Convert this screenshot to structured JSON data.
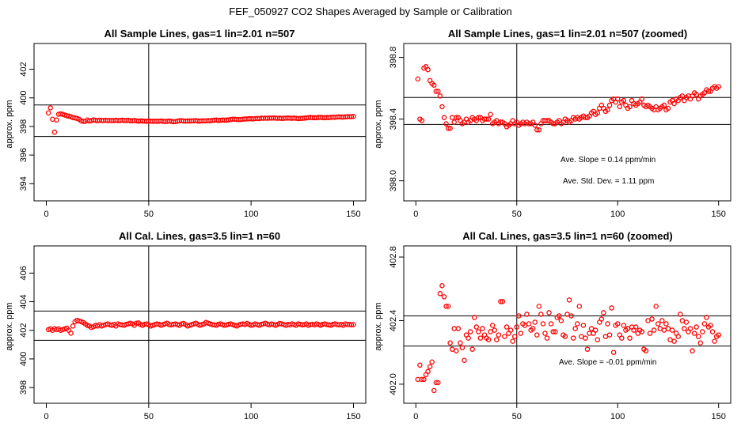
{
  "figure_title": "FEF_050927  CO2 Shapes Averaged by Sample or Calibration",
  "chart_data": [
    {
      "type": "scatter",
      "title": "All Sample Lines, gas=1 lin=2.01 n=507",
      "xlabel": "",
      "ylabel": "approx. ppm",
      "xlim": [
        -6,
        156
      ],
      "ylim": [
        392.8,
        403.8
      ],
      "xticks": [
        0,
        50,
        100,
        150
      ],
      "yticks": [
        394,
        396,
        398,
        400,
        402
      ],
      "hlines": [
        399.5,
        397.3
      ],
      "vline": 50,
      "marker_color": "#ff0000",
      "x": [
        1,
        2,
        3,
        4,
        5,
        6,
        7,
        8,
        9,
        10,
        11,
        12,
        13,
        14,
        15,
        16,
        17,
        18,
        19,
        20,
        21,
        22,
        23,
        24,
        25,
        26,
        27,
        28,
        29,
        30,
        31,
        32,
        33,
        34,
        35,
        36,
        37,
        38,
        39,
        40,
        41,
        42,
        43,
        44,
        45,
        46,
        47,
        48,
        49,
        50,
        51,
        52,
        53,
        54,
        55,
        56,
        57,
        58,
        59,
        60,
        61,
        62,
        63,
        64,
        65,
        66,
        67,
        68,
        69,
        70,
        71,
        72,
        73,
        74,
        75,
        76,
        77,
        78,
        79,
        80,
        81,
        82,
        83,
        84,
        85,
        86,
        87,
        88,
        89,
        90,
        91,
        92,
        93,
        94,
        95,
        96,
        97,
        98,
        99,
        100,
        101,
        102,
        103,
        104,
        105,
        106,
        107,
        108,
        109,
        110,
        111,
        112,
        113,
        114,
        115,
        116,
        117,
        118,
        119,
        120,
        121,
        122,
        123,
        124,
        125,
        126,
        127,
        128,
        129,
        130,
        131,
        132,
        133,
        134,
        135,
        136,
        137,
        138,
        139,
        140,
        141,
        142,
        143,
        144,
        145,
        146,
        147,
        148,
        149,
        150
      ],
      "y": [
        398.95,
        399.3,
        398.5,
        397.6,
        398.45,
        398.85,
        398.88,
        398.85,
        398.8,
        398.75,
        398.72,
        398.68,
        398.62,
        398.6,
        398.56,
        398.5,
        398.4,
        398.36,
        398.35,
        398.45,
        398.38,
        398.41,
        398.46,
        398.43,
        398.4,
        398.44,
        398.41,
        398.42,
        398.43,
        398.41,
        398.42,
        398.42,
        398.41,
        398.43,
        398.41,
        398.42,
        398.44,
        398.42,
        398.41,
        398.43,
        398.4,
        398.4,
        398.42,
        398.39,
        398.37,
        398.39,
        398.38,
        398.37,
        398.36,
        398.38,
        398.37,
        398.36,
        398.37,
        398.36,
        398.37,
        398.38,
        398.36,
        398.35,
        398.36,
        398.38,
        398.36,
        398.33,
        398.34,
        398.37,
        398.4,
        398.41,
        398.38,
        398.37,
        398.39,
        398.38,
        398.39,
        398.4,
        398.41,
        398.38,
        398.37,
        398.39,
        398.4,
        398.39,
        398.41,
        398.4,
        398.42,
        398.44,
        398.45,
        398.42,
        398.43,
        398.45,
        398.44,
        398.45,
        398.46,
        398.48,
        398.51,
        398.51,
        398.49,
        398.48,
        398.49,
        398.51,
        398.52,
        398.53,
        398.54,
        398.54,
        398.53,
        398.55,
        398.56,
        398.55,
        398.58,
        398.57,
        398.58,
        398.57,
        398.59,
        398.58,
        398.6,
        398.58,
        398.57,
        398.58,
        398.56,
        398.57,
        398.58,
        398.59,
        398.58,
        398.57,
        398.59,
        398.57,
        398.55,
        398.56,
        398.57,
        398.58,
        398.6,
        398.62,
        398.63,
        398.62,
        398.61,
        398.61,
        398.63,
        398.64,
        398.62,
        398.61,
        398.63,
        398.62,
        398.64,
        398.65,
        398.64,
        398.66,
        398.67,
        398.66,
        398.65,
        398.67,
        398.68,
        398.69,
        398.68,
        398.7
      ]
    },
    {
      "type": "scatter",
      "title": "All Sample Lines, gas=1 lin=2.01 n=507 (zoomed)",
      "xlabel": "",
      "ylabel": "approx. ppm",
      "xlim": [
        -6,
        156
      ],
      "ylim": [
        397.87,
        398.89
      ],
      "xticks": [
        0,
        50,
        100,
        150
      ],
      "yticks": [
        398.0,
        398.4,
        398.8
      ],
      "ytick_labels": [
        "398.0",
        "398.4",
        "398.8"
      ],
      "hlines": [
        398.54,
        398.365
      ],
      "vline": 50,
      "marker_color": "#ff0000",
      "annotations": [
        "Ave. Slope =  0.14  ppm/min",
        "Ave. Std. Dev. =  1.11  ppm"
      ],
      "x": [
        1,
        2,
        3,
        4,
        5,
        6,
        7,
        8,
        9,
        10,
        11,
        12,
        13,
        14,
        15,
        16,
        17,
        18,
        19,
        20,
        21,
        22,
        23,
        24,
        25,
        26,
        27,
        28,
        29,
        30,
        31,
        32,
        33,
        34,
        35,
        36,
        37,
        38,
        39,
        40,
        41,
        42,
        43,
        44,
        45,
        46,
        47,
        48,
        49,
        50,
        51,
        52,
        53,
        54,
        55,
        56,
        57,
        58,
        59,
        60,
        61,
        62,
        63,
        64,
        65,
        66,
        67,
        68,
        69,
        70,
        71,
        72,
        73,
        74,
        75,
        76,
        77,
        78,
        79,
        80,
        81,
        82,
        83,
        84,
        85,
        86,
        87,
        88,
        89,
        90,
        91,
        92,
        93,
        94,
        95,
        96,
        97,
        98,
        99,
        100,
        101,
        102,
        103,
        104,
        105,
        106,
        107,
        108,
        109,
        110,
        111,
        112,
        113,
        114,
        115,
        116,
        117,
        118,
        119,
        120,
        121,
        122,
        123,
        124,
        125,
        126,
        127,
        128,
        129,
        130,
        131,
        132,
        133,
        134,
        135,
        136,
        137,
        138,
        139,
        140,
        141,
        142,
        143,
        144,
        145,
        146,
        147,
        148,
        149,
        150
      ],
      "y": [
        398.66,
        398.4,
        398.39,
        398.73,
        398.74,
        398.72,
        398.65,
        398.63,
        398.62,
        398.58,
        398.58,
        398.55,
        398.48,
        398.41,
        398.37,
        398.34,
        398.34,
        398.41,
        398.38,
        398.41,
        398.41,
        398.39,
        398.37,
        398.38,
        398.4,
        398.38,
        398.39,
        398.41,
        398.4,
        398.39,
        398.41,
        398.41,
        398.39,
        398.4,
        398.4,
        398.4,
        398.43,
        398.37,
        398.38,
        398.39,
        398.37,
        398.38,
        398.38,
        398.37,
        398.35,
        398.36,
        398.37,
        398.39,
        398.37,
        398.38,
        398.36,
        398.37,
        398.38,
        398.37,
        398.38,
        398.37,
        398.37,
        398.38,
        398.36,
        398.33,
        398.33,
        398.37,
        398.39,
        398.39,
        398.39,
        398.39,
        398.38,
        398.37,
        398.37,
        398.38,
        398.39,
        398.37,
        398.38,
        398.4,
        398.39,
        398.38,
        398.39,
        398.41,
        398.4,
        398.41,
        398.4,
        398.41,
        398.42,
        398.41,
        398.41,
        398.42,
        398.44,
        398.45,
        398.43,
        398.44,
        398.47,
        398.49,
        398.47,
        398.45,
        398.46,
        398.49,
        398.52,
        398.53,
        398.51,
        398.53,
        398.48,
        398.51,
        398.52,
        398.49,
        398.47,
        398.48,
        398.52,
        398.5,
        398.49,
        398.5,
        398.51,
        398.53,
        398.49,
        398.48,
        398.49,
        398.48,
        398.47,
        398.46,
        398.48,
        398.46,
        398.47,
        398.48,
        398.49,
        398.46,
        398.47,
        398.51,
        398.52,
        398.5,
        398.53,
        398.52,
        398.54,
        398.55,
        398.52,
        398.54,
        398.55,
        398.53,
        398.55,
        398.57,
        398.56,
        398.53,
        398.55,
        398.56,
        398.57,
        398.59,
        398.58,
        398.58,
        398.6,
        398.61,
        398.6,
        398.61
      ]
    },
    {
      "type": "scatter",
      "title": "All Cal. Lines, gas=3.5 lin=1 n=60",
      "xlabel": "",
      "ylabel": "approx. ppm",
      "xlim": [
        -6,
        156
      ],
      "ylim": [
        396.9,
        407.9
      ],
      "xticks": [
        0,
        50,
        100,
        150
      ],
      "yticks": [
        398,
        400,
        402,
        404,
        406
      ],
      "hlines": [
        403.35,
        401.3
      ],
      "vline": 50,
      "marker_color": "#ff0000",
      "x": [
        1,
        2,
        3,
        4,
        5,
        6,
        7,
        8,
        9,
        10,
        11,
        12,
        13,
        14,
        15,
        16,
        17,
        18,
        19,
        20,
        21,
        22,
        23,
        24,
        25,
        26,
        27,
        28,
        29,
        30,
        31,
        32,
        33,
        34,
        35,
        36,
        37,
        38,
        39,
        40,
        41,
        42,
        43,
        44,
        45,
        46,
        47,
        48,
        49,
        50,
        51,
        52,
        53,
        54,
        55,
        56,
        57,
        58,
        59,
        60,
        61,
        62,
        63,
        64,
        65,
        66,
        67,
        68,
        69,
        70,
        71,
        72,
        73,
        74,
        75,
        76,
        77,
        78,
        79,
        80,
        81,
        82,
        83,
        84,
        85,
        86,
        87,
        88,
        89,
        90,
        91,
        92,
        93,
        94,
        95,
        96,
        97,
        98,
        99,
        100,
        101,
        102,
        103,
        104,
        105,
        106,
        107,
        108,
        109,
        110,
        111,
        112,
        113,
        114,
        115,
        116,
        117,
        118,
        119,
        120,
        121,
        122,
        123,
        124,
        125,
        126,
        127,
        128,
        129,
        130,
        131,
        132,
        133,
        134,
        135,
        136,
        137,
        138,
        139,
        140,
        141,
        142,
        143,
        144,
        145,
        146,
        147,
        148,
        149,
        150
      ],
      "y": [
        402.05,
        402.1,
        402.0,
        402.12,
        402.05,
        402.1,
        402.0,
        402.05,
        402.1,
        402.15,
        402.0,
        401.8,
        402.3,
        402.6,
        402.7,
        402.65,
        402.6,
        402.55,
        402.45,
        402.35,
        402.3,
        402.2,
        402.25,
        402.35,
        402.3,
        402.4,
        402.3,
        402.35,
        402.4,
        402.45,
        402.38,
        402.35,
        402.42,
        402.3,
        402.45,
        402.4,
        402.38,
        402.35,
        402.42,
        402.45,
        402.5,
        402.45,
        402.35,
        402.5,
        402.52,
        402.4,
        402.35,
        402.42,
        402.45,
        402.38,
        402.3,
        402.35,
        402.4,
        402.45,
        402.42,
        402.35,
        402.4,
        402.45,
        402.5,
        402.4,
        402.38,
        402.42,
        402.45,
        402.4,
        402.35,
        402.45,
        402.48,
        402.4,
        402.3,
        402.35,
        402.4,
        402.45,
        402.5,
        402.42,
        402.35,
        402.4,
        402.45,
        402.55,
        402.5,
        402.45,
        402.4,
        402.38,
        402.35,
        402.42,
        402.45,
        402.4,
        402.35,
        402.38,
        402.42,
        402.45,
        402.4,
        402.35,
        402.3,
        402.38,
        402.42,
        402.45,
        402.4,
        402.48,
        402.42,
        402.35,
        402.38,
        402.45,
        402.4,
        402.35,
        402.42,
        402.45,
        402.5,
        402.42,
        402.38,
        402.45,
        402.4,
        402.35,
        402.42,
        402.48,
        402.45,
        402.4,
        402.35,
        402.42,
        402.38,
        402.45,
        402.4,
        402.35,
        402.45,
        402.42,
        402.38,
        402.4,
        402.45,
        402.35,
        402.4,
        402.42,
        402.38,
        402.45,
        402.4,
        402.35,
        402.42,
        402.45,
        402.4,
        402.38,
        402.35,
        402.42,
        402.45,
        402.4,
        402.38,
        402.42,
        402.35,
        402.45,
        402.4,
        402.42,
        402.38,
        402.4
      ]
    },
    {
      "type": "scatter",
      "title": "All Cal. Lines, gas=3.5 lin=1 n=60 (zoomed)",
      "xlabel": "",
      "ylabel": "approx. ppm",
      "xlim": [
        -6,
        156
      ],
      "ylim": [
        401.88,
        402.87
      ],
      "xticks": [
        0,
        50,
        100,
        150
      ],
      "yticks": [
        402.0,
        402.4,
        402.8
      ],
      "ytick_labels": [
        "402.0",
        "402.4",
        "402.8"
      ],
      "hlines": [
        402.43,
        402.24
      ],
      "vline": 50,
      "marker_color": "#ff0000",
      "annotations": [
        "Ave. Slope =  -0.01  ppm/min"
      ],
      "x": [
        1,
        2,
        3,
        4,
        5,
        6,
        7,
        8,
        9,
        10,
        11,
        12,
        13,
        14,
        15,
        16,
        17,
        18,
        19,
        20,
        21,
        22,
        23,
        24,
        25,
        26,
        27,
        28,
        29,
        30,
        31,
        32,
        33,
        34,
        35,
        36,
        37,
        38,
        39,
        40,
        41,
        42,
        43,
        44,
        45,
        46,
        47,
        48,
        49,
        50,
        51,
        52,
        53,
        54,
        55,
        56,
        57,
        58,
        59,
        60,
        61,
        62,
        63,
        64,
        65,
        66,
        67,
        68,
        69,
        70,
        71,
        72,
        73,
        74,
        75,
        76,
        77,
        78,
        79,
        80,
        81,
        82,
        83,
        84,
        85,
        86,
        87,
        88,
        89,
        90,
        91,
        92,
        93,
        94,
        95,
        96,
        97,
        98,
        99,
        100,
        101,
        102,
        103,
        104,
        105,
        106,
        107,
        108,
        109,
        110,
        111,
        112,
        113,
        114,
        115,
        116,
        117,
        118,
        119,
        120,
        121,
        122,
        123,
        124,
        125,
        126,
        127,
        128,
        129,
        130,
        131,
        132,
        133,
        134,
        135,
        136,
        137,
        138,
        139,
        140,
        141,
        142,
        143,
        144,
        145,
        146,
        147,
        148,
        149,
        150
      ],
      "y": [
        402.03,
        402.12,
        402.03,
        402.03,
        402.06,
        402.08,
        402.11,
        402.14,
        401.96,
        402.01,
        402.01,
        402.57,
        402.62,
        402.55,
        402.49,
        402.49,
        402.26,
        402.22,
        402.35,
        402.21,
        402.35,
        402.26,
        402.23,
        402.15,
        402.31,
        402.29,
        402.33,
        402.22,
        402.42,
        402.36,
        402.33,
        402.29,
        402.35,
        402.31,
        402.29,
        402.28,
        402.33,
        402.37,
        402.34,
        402.28,
        402.31,
        402.52,
        402.52,
        402.3,
        402.36,
        402.32,
        402.34,
        402.27,
        402.3,
        402.36,
        402.43,
        402.32,
        402.38,
        402.37,
        402.44,
        402.38,
        402.34,
        402.35,
        402.39,
        402.31,
        402.49,
        402.44,
        402.38,
        402.32,
        402.29,
        402.45,
        402.38,
        402.33,
        402.33,
        402.42,
        402.43,
        402.4,
        402.31,
        402.3,
        402.44,
        402.53,
        402.43,
        402.29,
        402.35,
        402.38,
        402.49,
        402.3,
        402.37,
        402.29,
        402.22,
        402.32,
        402.35,
        402.32,
        402.34,
        402.28,
        402.39,
        402.41,
        402.45,
        402.3,
        402.38,
        402.31,
        402.48,
        402.2,
        402.37,
        402.38,
        402.31,
        402.29,
        402.37,
        402.34,
        402.35,
        402.29,
        402.36,
        402.34,
        402.36,
        402.32,
        402.34,
        402.33,
        402.22,
        402.21,
        402.4,
        402.32,
        402.41,
        402.34,
        402.49,
        402.38,
        402.35,
        402.4,
        402.34,
        402.38,
        402.35,
        402.28,
        402.34,
        402.27,
        402.32,
        402.3,
        402.44,
        402.4,
        402.35,
        402.39,
        402.33,
        402.35,
        402.21,
        402.32,
        402.36,
        402.3,
        402.26,
        402.33,
        402.38,
        402.42,
        402.36,
        402.37,
        402.33,
        402.27,
        402.3,
        402.31
      ]
    }
  ]
}
